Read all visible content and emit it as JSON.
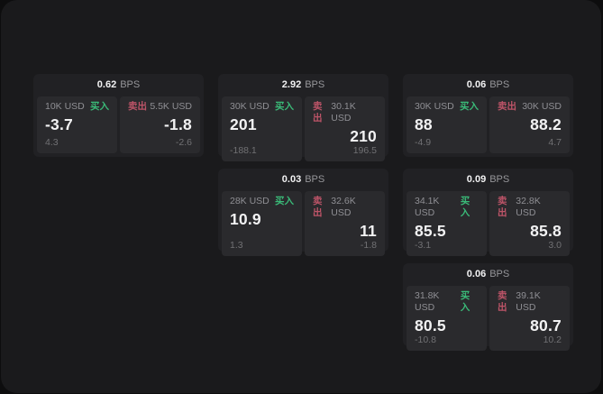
{
  "labels": {
    "bps": "BPS",
    "buy": "买入",
    "sell": "卖出"
  },
  "colors": {
    "buy": "#3aba78",
    "sell": "#bd5468",
    "screen_bg": "#1a1a1c",
    "card_bg": "#212124",
    "panel_bg": "#2a2a2d"
  },
  "cards": [
    {
      "bps": "0.62",
      "row": 1,
      "col": 1,
      "buy": {
        "amount": "10K USD",
        "value": "-3.7",
        "delta": "4.3"
      },
      "sell": {
        "amount": "5.5K USD",
        "value": "-1.8",
        "delta": "-2.6"
      }
    },
    {
      "bps": "2.92",
      "row": 1,
      "col": 2,
      "buy": {
        "amount": "30K USD",
        "value": "201",
        "delta": "-188.1"
      },
      "sell": {
        "amount": "30.1K USD",
        "value": "210",
        "delta": "196.5"
      }
    },
    {
      "bps": "0.06",
      "row": 1,
      "col": 3,
      "buy": {
        "amount": "30K USD",
        "value": "88",
        "delta": "-4.9"
      },
      "sell": {
        "amount": "30K USD",
        "value": "88.2",
        "delta": "4.7"
      }
    },
    {
      "bps": "0.03",
      "row": 2,
      "col": 2,
      "buy": {
        "amount": "28K USD",
        "value": "10.9",
        "delta": "1.3"
      },
      "sell": {
        "amount": "32.6K USD",
        "value": "11",
        "delta": "-1.8"
      }
    },
    {
      "bps": "0.09",
      "row": 2,
      "col": 3,
      "buy": {
        "amount": "34.1K USD",
        "value": "85.5",
        "delta": "-3.1"
      },
      "sell": {
        "amount": "32.8K USD",
        "value": "85.8",
        "delta": "3.0"
      }
    },
    {
      "bps": "0.06",
      "row": 3,
      "col": 3,
      "buy": {
        "amount": "31.8K USD",
        "value": "80.5",
        "delta": "-10.8"
      },
      "sell": {
        "amount": "39.1K USD",
        "value": "80.7",
        "delta": "10.2"
      }
    }
  ]
}
